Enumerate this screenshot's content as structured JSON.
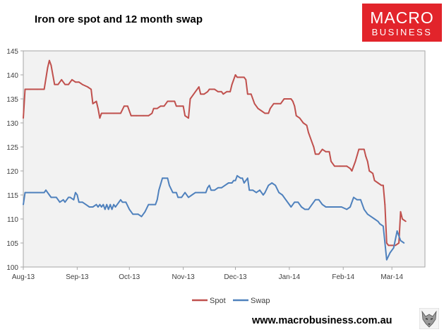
{
  "header": {
    "title": "Iron ore spot and 12 month swap"
  },
  "logo": {
    "line1": "MACRO",
    "line2": "BUSINESS",
    "color": "#e2242b"
  },
  "footer": {
    "url": "www.macrobusiness.com.au",
    "icon": "wolf-icon"
  },
  "colors": {
    "spot": "#c0504d",
    "swap": "#4f81bd",
    "plot_bg": "#f2f2f2"
  },
  "chart_data": {
    "type": "line",
    "title": "Iron ore spot and 12 month swap",
    "xlabel": "",
    "ylabel": "",
    "ylim": [
      100,
      145
    ],
    "yticks": [
      100,
      105,
      110,
      115,
      120,
      125,
      130,
      135,
      140,
      145
    ],
    "xlim": [
      "2013-08-01",
      "2014-03-20"
    ],
    "x_tick_labels": [
      {
        "date": "2013-08-01",
        "label": "Aug-13"
      },
      {
        "date": "2013-09-01",
        "label": "Sep-13"
      },
      {
        "date": "2013-10-01",
        "label": "Oct-13"
      },
      {
        "date": "2013-11-01",
        "label": "Nov-13"
      },
      {
        "date": "2013-12-01",
        "label": "Dec-13"
      },
      {
        "date": "2014-01-01",
        "label": "Jan-14"
      },
      {
        "date": "2014-02-01",
        "label": "Feb-14"
      },
      {
        "date": "2014-03-01",
        "label": "Mar-14"
      }
    ],
    "grid": false,
    "legend_position": "bottom",
    "series": [
      {
        "name": "Spot",
        "color": "#c0504d",
        "points": [
          [
            "2013-08-01",
            131.0
          ],
          [
            "2013-08-02",
            137.0
          ],
          [
            "2013-08-05",
            137.0
          ],
          [
            "2013-08-09",
            137.0
          ],
          [
            "2013-08-13",
            137.0
          ],
          [
            "2013-08-15",
            141.5
          ],
          [
            "2013-08-16",
            143.0
          ],
          [
            "2013-08-17",
            142.0
          ],
          [
            "2013-08-19",
            138.0
          ],
          [
            "2013-08-21",
            138.0
          ],
          [
            "2013-08-23",
            139.0
          ],
          [
            "2013-08-25",
            138.0
          ],
          [
            "2013-08-27",
            138.0
          ],
          [
            "2013-08-29",
            139.0
          ],
          [
            "2013-08-31",
            138.5
          ],
          [
            "2013-09-02",
            138.5
          ],
          [
            "2013-09-04",
            138.0
          ],
          [
            "2013-09-07",
            137.5
          ],
          [
            "2013-09-09",
            137.0
          ],
          [
            "2013-09-10",
            134.0
          ],
          [
            "2013-09-12",
            134.5
          ],
          [
            "2013-09-13",
            133.0
          ],
          [
            "2013-09-14",
            131.0
          ],
          [
            "2013-09-15",
            132.0
          ],
          [
            "2013-09-18",
            132.0
          ],
          [
            "2013-09-22",
            132.0
          ],
          [
            "2013-09-26",
            132.0
          ],
          [
            "2013-09-28",
            133.5
          ],
          [
            "2013-09-30",
            133.5
          ],
          [
            "2013-10-02",
            131.5
          ],
          [
            "2013-10-05",
            131.5
          ],
          [
            "2013-10-09",
            131.5
          ],
          [
            "2013-10-12",
            131.5
          ],
          [
            "2013-10-14",
            132.0
          ],
          [
            "2013-10-15",
            133.0
          ],
          [
            "2013-10-17",
            133.0
          ],
          [
            "2013-10-19",
            133.5
          ],
          [
            "2013-10-21",
            133.5
          ],
          [
            "2013-10-23",
            134.5
          ],
          [
            "2013-10-25",
            134.5
          ],
          [
            "2013-10-27",
            134.5
          ],
          [
            "2013-10-28",
            133.5
          ],
          [
            "2013-10-30",
            133.5
          ],
          [
            "2013-11-01",
            133.5
          ],
          [
            "2013-11-02",
            131.5
          ],
          [
            "2013-11-04",
            131.0
          ],
          [
            "2013-11-05",
            135.0
          ],
          [
            "2013-11-07",
            136.0
          ],
          [
            "2013-11-09",
            137.0
          ],
          [
            "2013-11-10",
            137.5
          ],
          [
            "2013-11-11",
            136.0
          ],
          [
            "2013-11-13",
            136.0
          ],
          [
            "2013-11-15",
            136.5
          ],
          [
            "2013-11-16",
            137.0
          ],
          [
            "2013-11-19",
            137.0
          ],
          [
            "2013-11-21",
            136.5
          ],
          [
            "2013-11-23",
            136.5
          ],
          [
            "2013-11-24",
            136.0
          ],
          [
            "2013-11-26",
            136.5
          ],
          [
            "2013-11-28",
            136.5
          ],
          [
            "2013-11-29",
            138.0
          ],
          [
            "2013-12-01",
            140.0
          ],
          [
            "2013-12-02",
            139.5
          ],
          [
            "2013-12-04",
            139.5
          ],
          [
            "2013-12-06",
            139.5
          ],
          [
            "2013-12-07",
            139.0
          ],
          [
            "2013-12-08",
            136.0
          ],
          [
            "2013-12-10",
            136.0
          ],
          [
            "2013-12-12",
            134.0
          ],
          [
            "2013-12-14",
            133.0
          ],
          [
            "2013-12-16",
            132.5
          ],
          [
            "2013-12-18",
            132.0
          ],
          [
            "2013-12-20",
            132.0
          ],
          [
            "2013-12-21",
            133.0
          ],
          [
            "2013-12-23",
            134.0
          ],
          [
            "2013-12-25",
            134.0
          ],
          [
            "2013-12-27",
            134.0
          ],
          [
            "2013-12-29",
            135.0
          ],
          [
            "2013-12-31",
            135.0
          ],
          [
            "2014-01-02",
            135.0
          ],
          [
            "2014-01-03",
            134.5
          ],
          [
            "2014-01-04",
            133.5
          ],
          [
            "2014-01-05",
            131.5
          ],
          [
            "2014-01-07",
            131.0
          ],
          [
            "2014-01-09",
            130.0
          ],
          [
            "2014-01-11",
            129.5
          ],
          [
            "2014-01-12",
            128.0
          ],
          [
            "2014-01-14",
            126.0
          ],
          [
            "2014-01-15",
            125.0
          ],
          [
            "2014-01-16",
            123.5
          ],
          [
            "2014-01-18",
            123.5
          ],
          [
            "2014-01-20",
            124.5
          ],
          [
            "2014-01-22",
            124.0
          ],
          [
            "2014-01-24",
            124.0
          ],
          [
            "2014-01-25",
            122.0
          ],
          [
            "2014-01-27",
            121.0
          ],
          [
            "2014-01-30",
            121.0
          ],
          [
            "2014-02-03",
            121.0
          ],
          [
            "2014-02-05",
            120.5
          ],
          [
            "2014-02-06",
            120.0
          ],
          [
            "2014-02-08",
            122.0
          ],
          [
            "2014-02-10",
            124.5
          ],
          [
            "2014-02-13",
            124.5
          ],
          [
            "2014-02-14",
            123.0
          ],
          [
            "2014-02-15",
            122.0
          ],
          [
            "2014-02-16",
            120.0
          ],
          [
            "2014-02-18",
            119.5
          ],
          [
            "2014-02-19",
            118.0
          ],
          [
            "2014-02-21",
            117.5
          ],
          [
            "2014-02-23",
            117.0
          ],
          [
            "2014-02-24",
            117.0
          ],
          [
            "2014-02-25",
            113.0
          ],
          [
            "2014-02-26",
            105.0
          ],
          [
            "2014-02-27",
            104.5
          ],
          [
            "2014-03-01",
            104.5
          ],
          [
            "2014-03-03",
            104.5
          ],
          [
            "2014-03-05",
            105.0
          ],
          [
            "2014-03-06",
            111.5
          ],
          [
            "2014-03-07",
            110.0
          ],
          [
            "2014-03-09",
            109.5
          ]
        ]
      },
      {
        "name": "Swap",
        "color": "#4f81bd",
        "points": [
          [
            "2013-08-01",
            113.0
          ],
          [
            "2013-08-02",
            115.5
          ],
          [
            "2013-08-05",
            115.5
          ],
          [
            "2013-08-09",
            115.5
          ],
          [
            "2013-08-13",
            115.5
          ],
          [
            "2013-08-14",
            116.0
          ],
          [
            "2013-08-16",
            115.0
          ],
          [
            "2013-08-17",
            114.5
          ],
          [
            "2013-08-20",
            114.5
          ],
          [
            "2013-08-21",
            114.0
          ],
          [
            "2013-08-22",
            113.5
          ],
          [
            "2013-08-24",
            114.0
          ],
          [
            "2013-08-25",
            113.5
          ],
          [
            "2013-08-27",
            114.5
          ],
          [
            "2013-08-28",
            114.5
          ],
          [
            "2013-08-30",
            114.0
          ],
          [
            "2013-08-31",
            115.5
          ],
          [
            "2013-09-01",
            115.0
          ],
          [
            "2013-09-02",
            113.5
          ],
          [
            "2013-09-04",
            113.5
          ],
          [
            "2013-09-06",
            113.0
          ],
          [
            "2013-09-08",
            112.5
          ],
          [
            "2013-09-10",
            112.5
          ],
          [
            "2013-09-12",
            113.0
          ],
          [
            "2013-09-13",
            112.5
          ],
          [
            "2013-09-14",
            113.0
          ],
          [
            "2013-09-15",
            112.5
          ],
          [
            "2013-09-16",
            113.0
          ],
          [
            "2013-09-17",
            112.0
          ],
          [
            "2013-09-18",
            113.0
          ],
          [
            "2013-09-19",
            112.0
          ],
          [
            "2013-09-20",
            113.0
          ],
          [
            "2013-09-21",
            112.0
          ],
          [
            "2013-09-22",
            113.0
          ],
          [
            "2013-09-23",
            112.5
          ],
          [
            "2013-09-25",
            113.5
          ],
          [
            "2013-09-26",
            114.0
          ],
          [
            "2013-09-27",
            113.5
          ],
          [
            "2013-09-29",
            113.5
          ],
          [
            "2013-10-01",
            112.0
          ],
          [
            "2013-10-03",
            111.0
          ],
          [
            "2013-10-06",
            111.0
          ],
          [
            "2013-10-08",
            110.5
          ],
          [
            "2013-10-10",
            111.5
          ],
          [
            "2013-10-12",
            113.0
          ],
          [
            "2013-10-14",
            113.0
          ],
          [
            "2013-10-16",
            113.0
          ],
          [
            "2013-10-17",
            114.0
          ],
          [
            "2013-10-18",
            116.0
          ],
          [
            "2013-10-20",
            118.5
          ],
          [
            "2013-10-21",
            118.5
          ],
          [
            "2013-10-23",
            118.5
          ],
          [
            "2013-10-24",
            117.0
          ],
          [
            "2013-10-26",
            115.5
          ],
          [
            "2013-10-28",
            115.5
          ],
          [
            "2013-10-29",
            114.5
          ],
          [
            "2013-10-31",
            114.5
          ],
          [
            "2013-11-02",
            115.5
          ],
          [
            "2013-11-04",
            114.5
          ],
          [
            "2013-11-06",
            115.0
          ],
          [
            "2013-11-08",
            115.5
          ],
          [
            "2013-11-10",
            115.5
          ],
          [
            "2013-11-12",
            115.5
          ],
          [
            "2013-11-14",
            115.5
          ],
          [
            "2013-11-15",
            116.5
          ],
          [
            "2013-11-16",
            117.0
          ],
          [
            "2013-11-17",
            116.0
          ],
          [
            "2013-11-19",
            116.0
          ],
          [
            "2013-11-21",
            116.5
          ],
          [
            "2013-11-23",
            116.5
          ],
          [
            "2013-11-25",
            117.0
          ],
          [
            "2013-11-27",
            117.5
          ],
          [
            "2013-11-29",
            117.5
          ],
          [
            "2013-11-30",
            118.0
          ],
          [
            "2013-12-01",
            118.0
          ],
          [
            "2013-12-02",
            119.0
          ],
          [
            "2013-12-04",
            118.5
          ],
          [
            "2013-12-05",
            118.5
          ],
          [
            "2013-12-06",
            117.5
          ],
          [
            "2013-12-08",
            118.5
          ],
          [
            "2013-12-09",
            116.0
          ],
          [
            "2013-12-11",
            116.0
          ],
          [
            "2013-12-13",
            115.5
          ],
          [
            "2013-12-15",
            116.0
          ],
          [
            "2013-12-17",
            115.0
          ],
          [
            "2013-12-18",
            115.5
          ],
          [
            "2013-12-20",
            117.0
          ],
          [
            "2013-12-22",
            117.5
          ],
          [
            "2013-12-24",
            117.0
          ],
          [
            "2013-12-26",
            115.5
          ],
          [
            "2013-12-28",
            115.0
          ],
          [
            "2013-12-30",
            114.0
          ],
          [
            "2014-01-01",
            113.0
          ],
          [
            "2014-01-02",
            112.5
          ],
          [
            "2014-01-04",
            113.5
          ],
          [
            "2014-01-06",
            113.5
          ],
          [
            "2014-01-08",
            112.5
          ],
          [
            "2014-01-10",
            112.0
          ],
          [
            "2014-01-12",
            112.0
          ],
          [
            "2014-01-14",
            113.0
          ],
          [
            "2014-01-16",
            114.0
          ],
          [
            "2014-01-18",
            114.0
          ],
          [
            "2014-01-20",
            113.0
          ],
          [
            "2014-01-22",
            112.5
          ],
          [
            "2014-01-25",
            112.5
          ],
          [
            "2014-01-28",
            112.5
          ],
          [
            "2014-01-31",
            112.5
          ],
          [
            "2014-02-03",
            112.0
          ],
          [
            "2014-02-05",
            112.5
          ],
          [
            "2014-02-07",
            114.5
          ],
          [
            "2014-02-09",
            114.0
          ],
          [
            "2014-02-11",
            114.0
          ],
          [
            "2014-02-13",
            112.0
          ],
          [
            "2014-02-15",
            111.0
          ],
          [
            "2014-02-17",
            110.5
          ],
          [
            "2014-02-19",
            110.0
          ],
          [
            "2014-02-21",
            109.5
          ],
          [
            "2014-02-22",
            109.0
          ],
          [
            "2014-02-24",
            108.5
          ],
          [
            "2014-02-26",
            101.5
          ],
          [
            "2014-02-28",
            103.0
          ],
          [
            "2014-03-02",
            104.0
          ],
          [
            "2014-03-04",
            107.5
          ],
          [
            "2014-03-06",
            105.5
          ],
          [
            "2014-03-08",
            105.0
          ]
        ]
      }
    ]
  }
}
